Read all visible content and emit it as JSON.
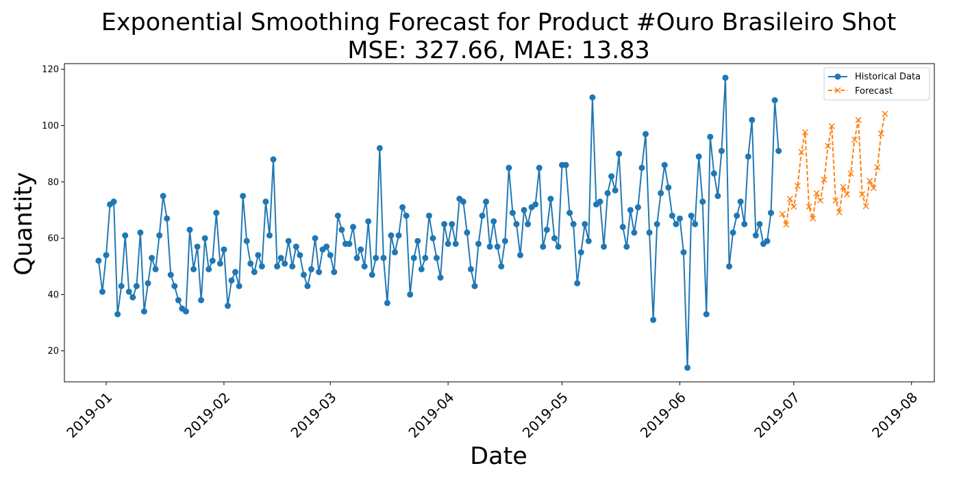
{
  "chart_data": {
    "type": "line",
    "title": "Exponential Smoothing Forecast for Product #Ouro Brasileiro Shot",
    "subtitle": "MSE: 327.66, MAE: 13.83",
    "xlabel": "Date",
    "ylabel": "Quantity",
    "xlim": [
      "2018-12-21",
      "2019-08-07"
    ],
    "ylim": [
      9,
      122
    ],
    "x_ticks": [
      "2019-01-01",
      "2019-02-01",
      "2019-03-01",
      "2019-04-01",
      "2019-05-01",
      "2019-06-01",
      "2019-07-01",
      "2019-08-01"
    ],
    "x_tick_labels": [
      "2019-01",
      "2019-02",
      "2019-03",
      "2019-04",
      "2019-05",
      "2019-06",
      "2019-07",
      "2019-08"
    ],
    "y_ticks": [
      20,
      40,
      60,
      80,
      100,
      120
    ],
    "grid": false,
    "legend_position": "top-right",
    "series": [
      {
        "name": "Historical Data",
        "color": "#1f77b4",
        "line_style": "solid",
        "marker": "circle",
        "start_date": "2018-12-30",
        "step_days": 1,
        "values": [
          52,
          41,
          54,
          72,
          73,
          33,
          43,
          61,
          41,
          39,
          43,
          62,
          34,
          44,
          53,
          49,
          61,
          75,
          67,
          47,
          43,
          38,
          35,
          34,
          63,
          49,
          57,
          38,
          60,
          49,
          52,
          69,
          51,
          56,
          36,
          45,
          48,
          43,
          75,
          59,
          51,
          48,
          54,
          50,
          73,
          61,
          88,
          50,
          53,
          51,
          59,
          50,
          57,
          54,
          47,
          43,
          49,
          60,
          48,
          56,
          57,
          54,
          48,
          68,
          63,
          58,
          58,
          64,
          53,
          56,
          50,
          66,
          47,
          53,
          92,
          53,
          37,
          61,
          55,
          61,
          71,
          68,
          40,
          53,
          59,
          49,
          53,
          68,
          60,
          53,
          46,
          65,
          58,
          65,
          58,
          74,
          73,
          62,
          49,
          43,
          58,
          68,
          73,
          57,
          66,
          57,
          50,
          59,
          85,
          69,
          65,
          54,
          70,
          65,
          71,
          72,
          85,
          57,
          63,
          74,
          60,
          57,
          86,
          86,
          69,
          65,
          44,
          55,
          65,
          59,
          110,
          72,
          73,
          57,
          76,
          82,
          77,
          90,
          64,
          57,
          70,
          62,
          71,
          85,
          97,
          62,
          31,
          65,
          76,
          86,
          78,
          68,
          65,
          67,
          55,
          14,
          68,
          65,
          89,
          73,
          33,
          96,
          83,
          75,
          91,
          117,
          50,
          62,
          68,
          73,
          65,
          89,
          102,
          61,
          65,
          58,
          59,
          69,
          109,
          91
        ]
      },
      {
        "name": "Forecast",
        "color": "#ff7f0e",
        "line_style": "dashed",
        "marker": "x",
        "start_date": "2019-06-28",
        "step_days": 1,
        "values": [
          68.6,
          64.8,
          74.0,
          71.2,
          78.6,
          90.6,
          97.6,
          71.2,
          67.0,
          76.0,
          73.4,
          80.8,
          92.8,
          99.8,
          73.4,
          69.2,
          78.2,
          75.6,
          83.0,
          95.0,
          102.0,
          75.6,
          71.4,
          80.4,
          77.8,
          85.2,
          97.2,
          104.2
        ]
      }
    ]
  }
}
